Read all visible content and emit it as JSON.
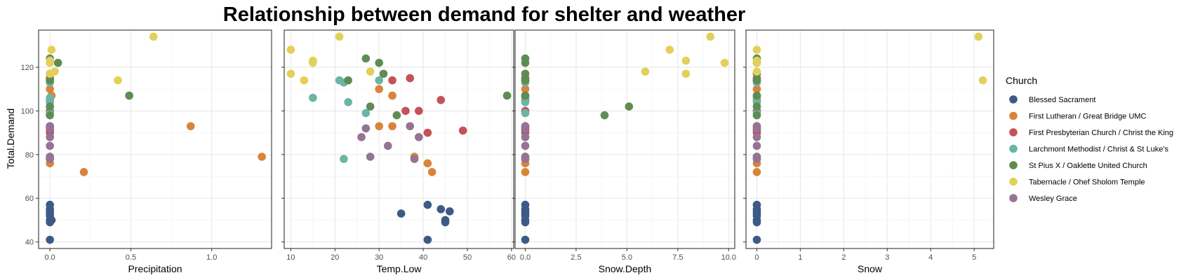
{
  "title": "Relationship between demand for shelter and weather",
  "legend": {
    "title": "Church",
    "placement": "right",
    "entries": [
      {
        "name": "Blessed Sacrament",
        "color": "#3d5a87"
      },
      {
        "name": "First Lutheran / Great Bridge UMC",
        "color": "#d9843b"
      },
      {
        "name": "First Presbyterian Church / Christ the King",
        "color": "#c4525a"
      },
      {
        "name": "Larchmont Methodist / Christ & St Luke's",
        "color": "#6bb5a5"
      },
      {
        "name": "St Pius X / Oaklette United Church",
        "color": "#5f8c52"
      },
      {
        "name": "Tabernacle / Ohef Sholom Temple",
        "color": "#e3d05a"
      },
      {
        "name": "Wesley Grace",
        "color": "#947394"
      }
    ]
  },
  "chart_data": {
    "type": "scatter",
    "grid": true,
    "ylabel": "Total.Demand",
    "ylim": [
      37,
      137
    ],
    "yticks": [
      40,
      60,
      80,
      100,
      120
    ],
    "panels": [
      {
        "xlabel": "Precipitation",
        "xlim": [
          -0.07,
          1.37
        ],
        "xticks": [
          "0.0",
          "0.5",
          "1.0"
        ],
        "xtick_values": [
          0,
          0.5,
          1.0
        ],
        "series": [
          {
            "name": "Blessed Sacrament",
            "points": [
              [
                0,
                57
              ],
              [
                0,
                55
              ],
              [
                0,
                54
              ],
              [
                0,
                53
              ],
              [
                0,
                52
              ],
              [
                0,
                50
              ],
              [
                0,
                49
              ],
              [
                0.01,
                50
              ],
              [
                0,
                41
              ]
            ]
          },
          {
            "name": "First Lutheran / Great Bridge UMC",
            "points": [
              [
                0,
                110
              ],
              [
                0.01,
                107
              ],
              [
                0,
                93
              ],
              [
                0.87,
                93
              ],
              [
                0,
                79
              ],
              [
                1.31,
                79
              ],
              [
                0,
                76
              ],
              [
                0.21,
                72
              ]
            ]
          },
          {
            "name": "First Presbyterian Church / Christ the King",
            "points": [
              [
                0,
                115
              ],
              [
                0,
                114
              ],
              [
                0,
                105
              ],
              [
                0,
                100
              ],
              [
                0,
                92
              ],
              [
                0,
                91
              ],
              [
                0,
                90
              ]
            ]
          },
          {
            "name": "Larchmont Methodist / Christ & St Luke's",
            "points": [
              [
                0,
                114
              ],
              [
                0,
                113
              ],
              [
                0,
                106
              ],
              [
                0,
                104
              ],
              [
                0,
                99
              ],
              [
                0,
                78
              ]
            ]
          },
          {
            "name": "St Pius X / Oaklette United Church",
            "points": [
              [
                0,
                124
              ],
              [
                0.05,
                122
              ],
              [
                0,
                117
              ],
              [
                0,
                114
              ],
              [
                0.49,
                107
              ],
              [
                0,
                102
              ],
              [
                0,
                98
              ]
            ]
          },
          {
            "name": "Tabernacle / Ohef Sholom Temple",
            "points": [
              [
                0.64,
                134
              ],
              [
                0.01,
                128
              ],
              [
                0,
                123
              ],
              [
                0,
                122
              ],
              [
                0.03,
                118
              ],
              [
                0,
                117
              ],
              [
                0.42,
                114
              ]
            ]
          },
          {
            "name": "Wesley Grace",
            "points": [
              [
                0,
                93
              ],
              [
                0,
                92
              ],
              [
                0,
                88
              ],
              [
                0,
                84
              ],
              [
                0,
                79
              ],
              [
                0,
                78
              ]
            ]
          }
        ]
      },
      {
        "xlabel": "Temp.Low",
        "xlim": [
          8.5,
          60.5
        ],
        "xticks": [
          "10",
          "20",
          "30",
          "40",
          "50",
          "60"
        ],
        "xtick_values": [
          10,
          20,
          30,
          40,
          50,
          60
        ],
        "series": [
          {
            "name": "Blessed Sacrament",
            "points": [
              [
                41,
                57
              ],
              [
                44,
                55
              ],
              [
                46,
                54
              ],
              [
                35,
                53
              ],
              [
                45,
                50
              ],
              [
                45,
                49
              ],
              [
                41,
                41
              ]
            ]
          },
          {
            "name": "First Lutheran / Great Bridge UMC",
            "points": [
              [
                30,
                110
              ],
              [
                33,
                107
              ],
              [
                30,
                93
              ],
              [
                33,
                93
              ],
              [
                38,
                79
              ],
              [
                41,
                76
              ],
              [
                42,
                72
              ]
            ]
          },
          {
            "name": "First Presbyterian Church / Christ the King",
            "points": [
              [
                37,
                115
              ],
              [
                33,
                114
              ],
              [
                44,
                105
              ],
              [
                36,
                100
              ],
              [
                39,
                100
              ],
              [
                49,
                91
              ],
              [
                41,
                90
              ]
            ]
          },
          {
            "name": "Larchmont Methodist / Christ & St Luke's",
            "points": [
              [
                21,
                114
              ],
              [
                22,
                113
              ],
              [
                30,
                114
              ],
              [
                15,
                106
              ],
              [
                23,
                104
              ],
              [
                27,
                99
              ],
              [
                22,
                78
              ]
            ]
          },
          {
            "name": "St Pius X / Oaklette United Church",
            "points": [
              [
                27,
                124
              ],
              [
                30,
                122
              ],
              [
                31,
                117
              ],
              [
                23,
                114
              ],
              [
                59,
                107
              ],
              [
                28,
                102
              ],
              [
                34,
                98
              ]
            ]
          },
          {
            "name": "Tabernacle / Ohef Sholom Temple",
            "points": [
              [
                21,
                134
              ],
              [
                10,
                128
              ],
              [
                15,
                123
              ],
              [
                15,
                122
              ],
              [
                28,
                118
              ],
              [
                10,
                117
              ],
              [
                13,
                114
              ]
            ]
          },
          {
            "name": "Wesley Grace",
            "points": [
              [
                37,
                93
              ],
              [
                27,
                92
              ],
              [
                39,
                88
              ],
              [
                26,
                88
              ],
              [
                32,
                84
              ],
              [
                28,
                79
              ],
              [
                38,
                78
              ]
            ]
          }
        ]
      },
      {
        "xlabel": "Snow.Depth",
        "xlim": [
          -0.5,
          10.3
        ],
        "xticks": [
          "0.0",
          "2.5",
          "5.0",
          "7.5",
          "10.0"
        ],
        "xtick_values": [
          0,
          2.5,
          5.0,
          7.5,
          10.0
        ],
        "series": [
          {
            "name": "Blessed Sacrament",
            "points": [
              [
                0,
                57
              ],
              [
                0,
                55
              ],
              [
                0,
                54
              ],
              [
                0,
                53
              ],
              [
                0,
                52
              ],
              [
                0,
                50
              ],
              [
                0,
                49
              ],
              [
                0,
                41
              ]
            ]
          },
          {
            "name": "First Lutheran / Great Bridge UMC",
            "points": [
              [
                0,
                110
              ],
              [
                0,
                107
              ],
              [
                0,
                93
              ],
              [
                0,
                79
              ],
              [
                0,
                76
              ],
              [
                0,
                72
              ]
            ]
          },
          {
            "name": "First Presbyterian Church / Christ the King",
            "points": [
              [
                0,
                115
              ],
              [
                0,
                114
              ],
              [
                0,
                105
              ],
              [
                0,
                100
              ],
              [
                0,
                92
              ],
              [
                0,
                91
              ],
              [
                0,
                90
              ]
            ]
          },
          {
            "name": "Larchmont Methodist / Christ & St Luke's",
            "points": [
              [
                0,
                114
              ],
              [
                0,
                113
              ],
              [
                0,
                106
              ],
              [
                0,
                104
              ],
              [
                0,
                99
              ],
              [
                0,
                78
              ]
            ]
          },
          {
            "name": "St Pius X / Oaklette United Church",
            "points": [
              [
                0,
                124
              ],
              [
                0,
                122
              ],
              [
                0,
                117
              ],
              [
                0,
                114
              ],
              [
                0,
                107
              ],
              [
                5.1,
                102
              ],
              [
                3.9,
                98
              ]
            ]
          },
          {
            "name": "Tabernacle / Ohef Sholom Temple",
            "points": [
              [
                9.1,
                134
              ],
              [
                7.1,
                128
              ],
              [
                7.9,
                123
              ],
              [
                9.8,
                122
              ],
              [
                5.9,
                118
              ],
              [
                7.9,
                117
              ]
            ]
          },
          {
            "name": "Wesley Grace",
            "points": [
              [
                0,
                93
              ],
              [
                0,
                92
              ],
              [
                0,
                88
              ],
              [
                0,
                84
              ],
              [
                0,
                79
              ],
              [
                0,
                78
              ]
            ]
          }
        ]
      },
      {
        "xlabel": "Snow",
        "xlim": [
          -0.25,
          5.45
        ],
        "xticks": [
          "0",
          "1",
          "2",
          "3",
          "4",
          "5"
        ],
        "xtick_values": [
          0,
          1,
          2,
          3,
          4,
          5
        ],
        "series": [
          {
            "name": "Blessed Sacrament",
            "points": [
              [
                0,
                57
              ],
              [
                0,
                55
              ],
              [
                0,
                54
              ],
              [
                0,
                53
              ],
              [
                0,
                52
              ],
              [
                0,
                50
              ],
              [
                0,
                49
              ],
              [
                0,
                41
              ]
            ]
          },
          {
            "name": "First Lutheran / Great Bridge UMC",
            "points": [
              [
                0,
                110
              ],
              [
                0,
                107
              ],
              [
                0,
                93
              ],
              [
                0,
                79
              ],
              [
                0,
                76
              ],
              [
                0,
                72
              ]
            ]
          },
          {
            "name": "First Presbyterian Church / Christ the King",
            "points": [
              [
                0,
                115
              ],
              [
                0,
                114
              ],
              [
                0,
                105
              ],
              [
                0,
                100
              ],
              [
                0,
                92
              ],
              [
                0,
                91
              ],
              [
                0,
                90
              ]
            ]
          },
          {
            "name": "Larchmont Methodist / Christ & St Luke's",
            "points": [
              [
                0,
                114
              ],
              [
                0,
                113
              ],
              [
                0,
                106
              ],
              [
                0,
                104
              ],
              [
                0,
                99
              ],
              [
                0,
                78
              ]
            ]
          },
          {
            "name": "St Pius X / Oaklette United Church",
            "points": [
              [
                0,
                124
              ],
              [
                0,
                122
              ],
              [
                0,
                117
              ],
              [
                0,
                114
              ],
              [
                0,
                107
              ],
              [
                0,
                102
              ],
              [
                0,
                98
              ]
            ]
          },
          {
            "name": "Tabernacle / Ohef Sholom Temple",
            "points": [
              [
                5.1,
                134
              ],
              [
                0,
                128
              ],
              [
                0,
                123
              ],
              [
                0,
                122
              ],
              [
                0,
                118
              ],
              [
                5.2,
                114
              ]
            ]
          },
          {
            "name": "Wesley Grace",
            "points": [
              [
                0,
                93
              ],
              [
                0,
                92
              ],
              [
                0,
                88
              ],
              [
                0,
                84
              ],
              [
                0,
                79
              ],
              [
                0,
                78
              ]
            ]
          }
        ]
      }
    ]
  }
}
